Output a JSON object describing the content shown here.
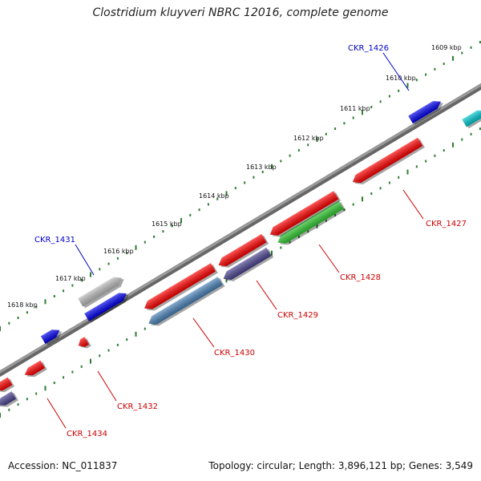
{
  "title": "Clostridium kluyveri NBRC 12016, complete genome",
  "accession": "Accession: NC_011837",
  "topology": "Topology: circular; Length: 3,896,121 bp; Genes: 3,549",
  "scale_ticks": [
    "1609 kbp",
    "1610 kbp",
    "1611 kbp",
    "1612 kbp",
    "1613 kbp",
    "1614 kbp",
    "1615 kbp",
    "1616 kbp",
    "1617 kbp",
    "1618 kbp"
  ],
  "gene_labels": [
    {
      "name": "CKR_1426",
      "strand": "forward",
      "color": "#0000cc"
    },
    {
      "name": "CKR_1427",
      "strand": "reverse",
      "color": "#cc0000"
    },
    {
      "name": "CKR_1428",
      "strand": "reverse",
      "color": "#cc0000"
    },
    {
      "name": "CKR_1429",
      "strand": "reverse",
      "color": "#cc0000"
    },
    {
      "name": "CKR_1430",
      "strand": "reverse",
      "color": "#cc0000"
    },
    {
      "name": "CKR_1431",
      "strand": "forward",
      "color": "#0000cc"
    },
    {
      "name": "CKR_1432",
      "strand": "reverse",
      "color": "#cc0000"
    },
    {
      "name": "CKR_1434",
      "strand": "reverse",
      "color": "#cc0000"
    }
  ],
  "colors": {
    "backbone": "#808080",
    "gene_red": "#ff0000",
    "gene_blue": "#0000ee",
    "gene_green": "#33cc33",
    "gene_purple": "#4b4490",
    "gene_steelblue": "#4a82b8",
    "gene_grey": "#bdbdbd",
    "gene_cyan": "#00c8d0",
    "tick_green": "#2e7d32"
  }
}
